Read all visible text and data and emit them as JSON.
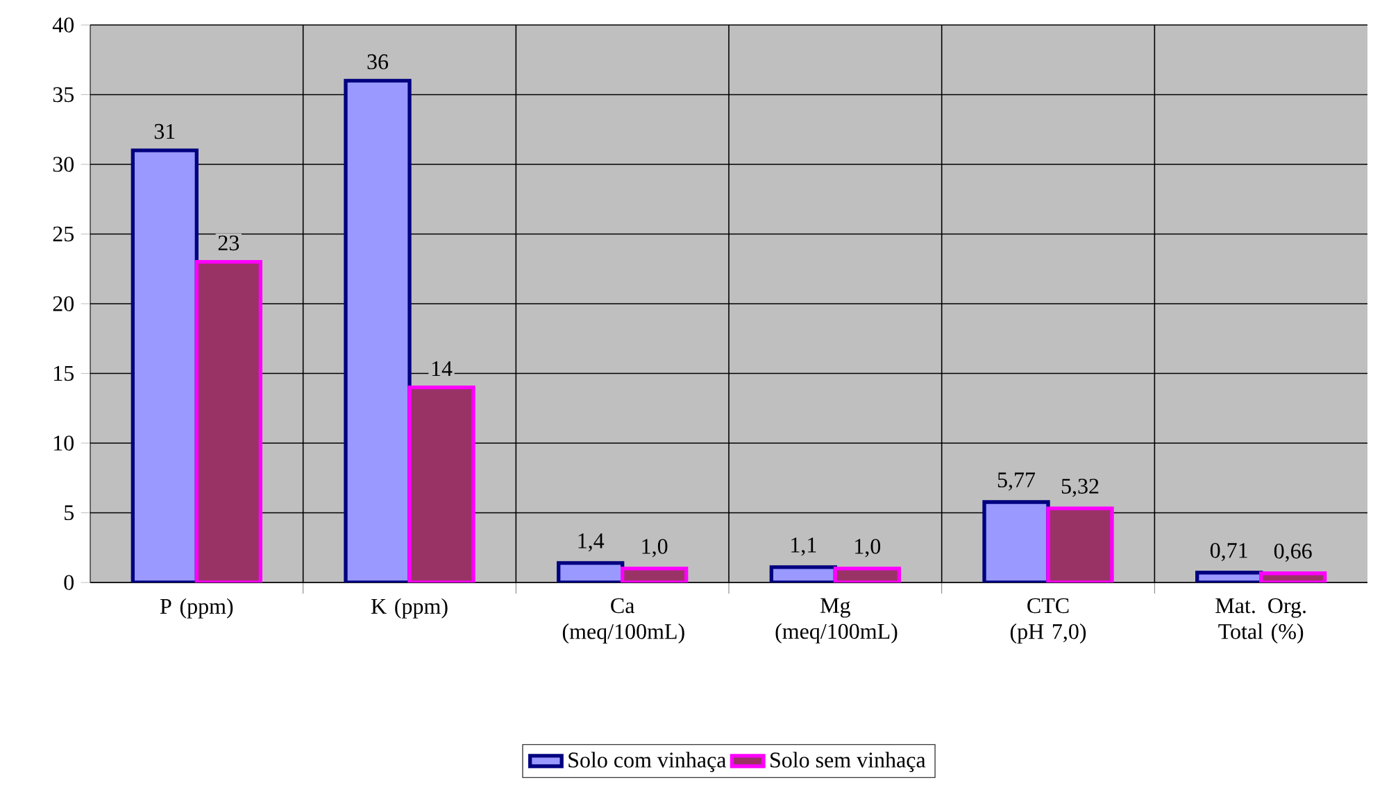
{
  "chart_data": {
    "type": "bar",
    "categories": [
      "P (ppm)",
      "K (ppm)",
      "Ca (meq/100mL)",
      "Mg (meq/100mL)",
      "CTC (pH 7,0)",
      "Mat. Org. Total (%)"
    ],
    "series": [
      {
        "name": "Solo com vinhaça",
        "color": "#9999ff",
        "values": [
          31,
          36,
          1.4,
          1.1,
          5.77,
          0.71
        ],
        "value_labels": [
          "31",
          "36",
          "1,4",
          "1,1",
          "5,77",
          "0,71"
        ]
      },
      {
        "name": "Solo sem vinhaça",
        "color": "#993366",
        "values": [
          23,
          14,
          1.0,
          1.0,
          5.32,
          0.66
        ],
        "value_labels": [
          "23",
          "14",
          "1,0",
          "1,0",
          "5,32",
          "0,66"
        ]
      }
    ],
    "ylim": [
      0,
      40
    ],
    "yticks": [
      0,
      5,
      10,
      15,
      20,
      25,
      30,
      35,
      40
    ],
    "grid": true,
    "legend": "bottom"
  }
}
